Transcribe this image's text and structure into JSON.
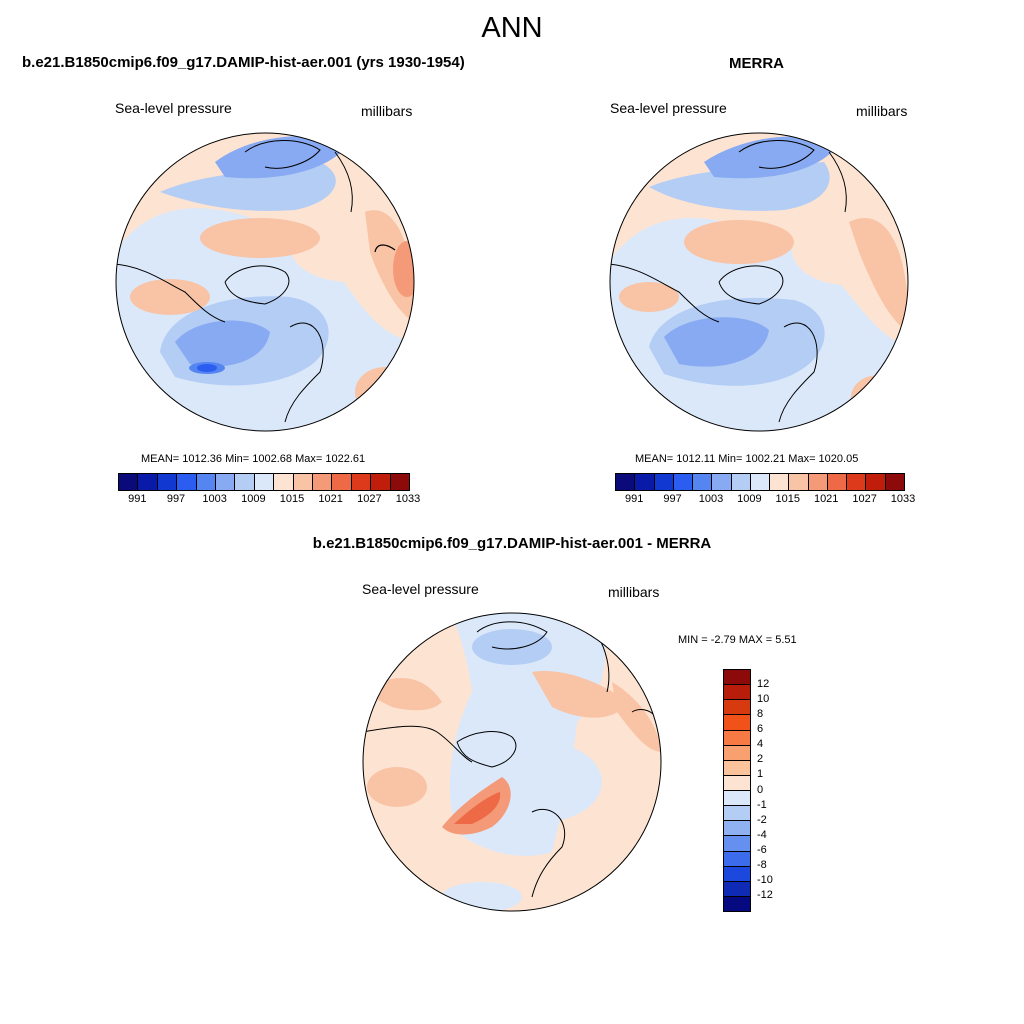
{
  "title": "ANN",
  "panels": [
    {
      "title": "b.e21.B1850cmip6.f09_g17.DAMIP-hist-aer.001 (yrs 1930-1954)",
      "variable": "Sea-level pressure",
      "units": "millibars",
      "stats": "MEAN= 1012.36  Min= 1002.68  Max= 1022.61"
    },
    {
      "title": "MERRA",
      "variable": "Sea-level pressure",
      "units": "millibars",
      "stats": "MEAN= 1012.11  Min= 1002.21  Max= 1020.05"
    },
    {
      "title": "b.e21.B1850cmip6.f09_g17.DAMIP-hist-aer.001 - MERRA",
      "variable": "Sea-level pressure",
      "units": "millibars",
      "stats": "MIN =  -2.79 MAX =   5.51"
    }
  ],
  "abs_colorbar": {
    "colors": [
      "#0a0a7a",
      "#0a1aa8",
      "#1238d2",
      "#2a5df0",
      "#5585f0",
      "#87aaf2",
      "#b4cdf5",
      "#dbe8fa",
      "#fde4d2",
      "#f9c3a6",
      "#f49a78",
      "#ee6a46",
      "#dd3a1c",
      "#c01e0a",
      "#8c0a0a"
    ],
    "tick_labels": [
      "991",
      "997",
      "1003",
      "1009",
      "1015",
      "1021",
      "1027",
      "1033"
    ]
  },
  "diff_colorbar": {
    "colors": [
      "#8c0a0a",
      "#b81c0a",
      "#d83a10",
      "#f0521a",
      "#f77a45",
      "#f9a070",
      "#fbc39b",
      "#fde4d2",
      "#dbe8fa",
      "#b4cdf5",
      "#8fb1f2",
      "#6690ef",
      "#3c6cec",
      "#1d48dd",
      "#0f2ab5",
      "#060a80"
    ],
    "tick_labels": [
      "12",
      "10",
      "8",
      "6",
      "4",
      "2",
      "1",
      "0",
      "-1",
      "-2",
      "-4",
      "-6",
      "-8",
      "-10",
      "-12"
    ]
  }
}
